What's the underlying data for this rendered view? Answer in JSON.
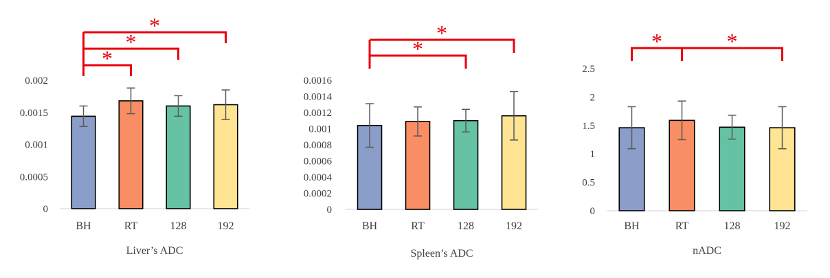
{
  "colors": {
    "BH": "#8b9dc9",
    "RT": "#f98d63",
    "128": "#66c2a4",
    "192": "#ffe493",
    "significance": "#e8000b",
    "axis": "#d9d9d9",
    "error_bar": "#595959"
  },
  "chart_data": [
    {
      "type": "bar",
      "title": "Liver’s ADC",
      "xlabel": "Liver’s ADC",
      "ylabel": "",
      "categories": [
        "BH",
        "RT",
        "128",
        "192"
      ],
      "values": [
        0.00144,
        0.00168,
        0.0016,
        0.00162
      ],
      "errors": [
        0.00016,
        0.0002,
        0.00016,
        0.00023
      ],
      "ylim": [
        0,
        0.002
      ],
      "yticks": [
        0,
        0.0005,
        0.001,
        0.0015,
        0.002
      ],
      "ytick_labels": [
        "0",
        "0.0005",
        "0.001",
        "0.0015",
        "0.002"
      ],
      "significance": [
        {
          "from": "BH",
          "to": "RT",
          "label": "*"
        },
        {
          "from": "BH",
          "to": "128",
          "label": "*"
        },
        {
          "from": "BH",
          "to": "192",
          "label": "*"
        }
      ]
    },
    {
      "type": "bar",
      "title": "Spleen’s ADC",
      "xlabel": "Spleen’s ADC",
      "ylabel": "",
      "categories": [
        "BH",
        "RT",
        "128",
        "192"
      ],
      "values": [
        0.00104,
        0.00109,
        0.0011,
        0.00116
      ],
      "errors": [
        0.00027,
        0.00018,
        0.00014,
        0.0003
      ],
      "ylim": [
        0,
        0.0016
      ],
      "yticks": [
        0,
        0.0002,
        0.0004,
        0.0006,
        0.0008,
        0.001,
        0.0012,
        0.0014,
        0.0016
      ],
      "ytick_labels": [
        "0",
        "0.0002",
        "0.0004",
        "0.0006",
        "0.0008",
        "0.001",
        "0.0012",
        "0.0014",
        "0.0016"
      ],
      "significance": [
        {
          "from": "BH",
          "to": "128",
          "label": "*"
        },
        {
          "from": "BH",
          "to": "192",
          "label": "*"
        }
      ]
    },
    {
      "type": "bar",
      "title": "nADC",
      "xlabel": "nADC",
      "ylabel": "",
      "categories": [
        "BH",
        "RT",
        "128",
        "192"
      ],
      "values": [
        1.46,
        1.59,
        1.47,
        1.46
      ],
      "errors": [
        0.37,
        0.34,
        0.21,
        0.37
      ],
      "ylim": [
        0,
        2.5
      ],
      "yticks": [
        0,
        0.5,
        1,
        1.5,
        2,
        2.5
      ],
      "ytick_labels": [
        "0",
        "0.5",
        "1",
        "1.5",
        "2",
        "2.5"
      ],
      "significance": [
        {
          "from": "BH",
          "to": "RT",
          "label": "*"
        },
        {
          "from": "RT",
          "to": "192",
          "label": "*"
        }
      ]
    }
  ]
}
